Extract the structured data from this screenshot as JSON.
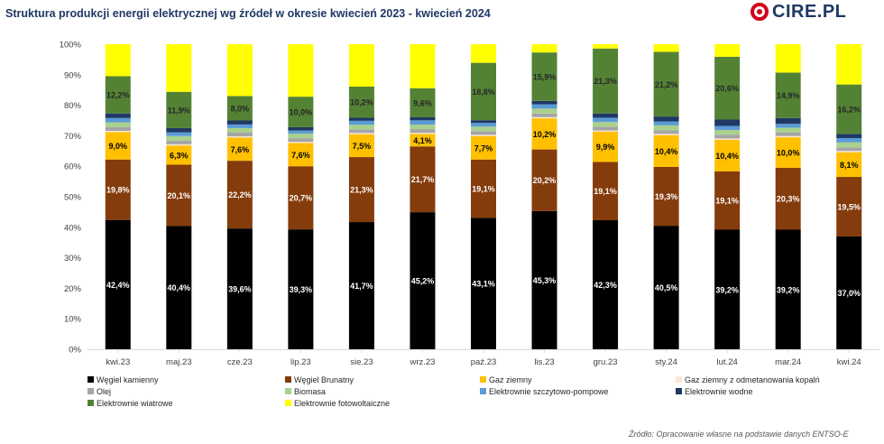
{
  "header": {
    "title": "Struktura produkcji energii elektrycznej wg źródeł w okresie kwiecień 2023 - kwiecień 2024",
    "logo_text": "CIRE.PL"
  },
  "footer": {
    "source": "Źródło: Opracowanie własne na podstawie danych ENTSO-E"
  },
  "chart_data": {
    "type": "bar",
    "stacked": true,
    "normalized": true,
    "title": "Struktura produkcji energii elektrycznej wg źródeł w okresie kwiecień 2023 - kwiecień 2024",
    "xlabel": "",
    "ylabel": "",
    "ylim": [
      0,
      100
    ],
    "yticks": [
      "0%",
      "10%",
      "20%",
      "30%",
      "40%",
      "50%",
      "60%",
      "70%",
      "80%",
      "90%",
      "100%"
    ],
    "grid": false,
    "legend_position": "bottom",
    "categories": [
      "kwi.23",
      "maj.23",
      "cze.23",
      "lip.23",
      "sie.23",
      "wrz.23",
      "paź.23",
      "lis.23",
      "gru.23",
      "sty.24",
      "lut.24",
      "mar.24",
      "kwi.24"
    ],
    "series": [
      {
        "name": "Węgiel kamienny",
        "color": "#000000",
        "label_color": "#ffffff",
        "values": [
          42.4,
          40.4,
          39.6,
          39.3,
          41.7,
          45.2,
          43.1,
          45.3,
          42.3,
          40.5,
          39.2,
          39.2,
          37.0
        ],
        "labels": [
          "42,4%",
          "40,4%",
          "39,6%",
          "39,3%",
          "41,7%",
          "45,2%",
          "43,1%",
          "45,3%",
          "42,3%",
          "40,5%",
          "39,2%",
          "39,2%",
          "37,0%"
        ]
      },
      {
        "name": "Węgiel Brunatny",
        "color": "#843c0c",
        "label_color": "#ffffff",
        "values": [
          19.8,
          20.1,
          22.2,
          20.7,
          21.3,
          21.7,
          19.1,
          20.2,
          19.1,
          19.3,
          19.1,
          20.3,
          19.5
        ],
        "labels": [
          "19,8%",
          "20,1%",
          "22,2%",
          "20,7%",
          "21,3%",
          "21,7%",
          "19,1%",
          "20,2%",
          "19,1%",
          "19,3%",
          "19,1%",
          "20,3%",
          "19,5%"
        ]
      },
      {
        "name": "Gaz  ziemny",
        "color": "#ffc000",
        "label_color": "#000000",
        "values": [
          9.0,
          6.3,
          7.6,
          7.6,
          7.5,
          4.1,
          7.7,
          10.2,
          9.9,
          10.4,
          10.4,
          10.0,
          8.1
        ],
        "labels": [
          "9,0%",
          "6,3%",
          "7,6%",
          "7,6%",
          "7,5%",
          "4,1%",
          "7,7%",
          "10,2%",
          "9,9%",
          "10,4%",
          "10,4%",
          "10,0%",
          "8,1%"
        ]
      },
      {
        "name": "Gaz ziemny z odmetanowania kopalń",
        "color": "#fbe5d6",
        "values": [
          0.4,
          0.4,
          0.4,
          0.4,
          0.4,
          0.4,
          0.4,
          0.4,
          0.4,
          0.4,
          0.4,
          0.4,
          0.4
        ]
      },
      {
        "name": "Olej",
        "color": "#a5a5a5",
        "values": [
          1.2,
          1.2,
          1.2,
          1.2,
          1.2,
          1.2,
          1.2,
          1.2,
          1.2,
          1.2,
          1.2,
          1.2,
          1.2
        ]
      },
      {
        "name": "Biomasa",
        "color": "#a9d18e",
        "values": [
          1.6,
          1.5,
          1.5,
          1.5,
          1.5,
          1.5,
          1.5,
          1.6,
          1.6,
          1.6,
          1.6,
          1.5,
          1.6
        ]
      },
      {
        "name": "Elektrownie szczytowo-pompowe",
        "color": "#5b9bd5",
        "values": [
          1.4,
          1.2,
          1.2,
          1.0,
          1.3,
          1.4,
          1.2,
          1.4,
          1.4,
          1.3,
          1.3,
          1.3,
          1.4
        ]
      },
      {
        "name": "Elektrownie wodne",
        "color": "#1f3864",
        "values": [
          1.5,
          1.4,
          1.3,
          1.1,
          1.0,
          1.0,
          0.9,
          1.1,
          1.4,
          1.6,
          2.1,
          1.9,
          1.4
        ]
      },
      {
        "name": "Elektrownie wiatrowe",
        "color": "#548235",
        "label_color": "#262626",
        "values": [
          12.2,
          11.9,
          8.0,
          10.0,
          10.2,
          9.6,
          18.8,
          15.9,
          21.3,
          21.2,
          20.6,
          14.9,
          16.2
        ],
        "labels": [
          "12,2%",
          "11,9%",
          "8,0%",
          "10,0%",
          "10,2%",
          "9,6%",
          "18,8%",
          "15,9%",
          "21,3%",
          "21,2%",
          "20,6%",
          "14,9%",
          "16,2%"
        ]
      },
      {
        "name": "Elektrownie fotowoltaiczne",
        "color": "#ffff00",
        "values": [
          10.5,
          15.6,
          17.0,
          17.2,
          13.9,
          14.5,
          6.1,
          2.7,
          1.4,
          2.5,
          4.1,
          9.3,
          13.2
        ]
      }
    ]
  }
}
